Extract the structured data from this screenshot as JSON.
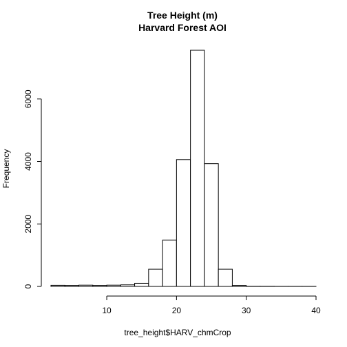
{
  "chart_data": {
    "type": "bar",
    "title": "Tree Height (m)",
    "subtitle": "Harvard Forest AOI",
    "xlabel": "tree_height$HARV_chmCrop",
    "ylabel": "Frequency",
    "bin_edges": [
      2,
      4,
      6,
      8,
      10,
      12,
      14,
      16,
      18,
      20,
      22,
      24,
      26,
      28,
      30,
      32,
      34,
      36,
      38,
      40
    ],
    "values": [
      35,
      30,
      40,
      30,
      40,
      50,
      100,
      550,
      1480,
      4060,
      7560,
      3930,
      550,
      30,
      5,
      5,
      3,
      3,
      3
    ],
    "xlim": [
      2,
      40
    ],
    "ylim": [
      0,
      7560
    ],
    "x_ticks": [
      10,
      20,
      30,
      40
    ],
    "y_ticks": [
      0,
      2000,
      4000,
      6000
    ],
    "grid": false,
    "legend": "none"
  }
}
